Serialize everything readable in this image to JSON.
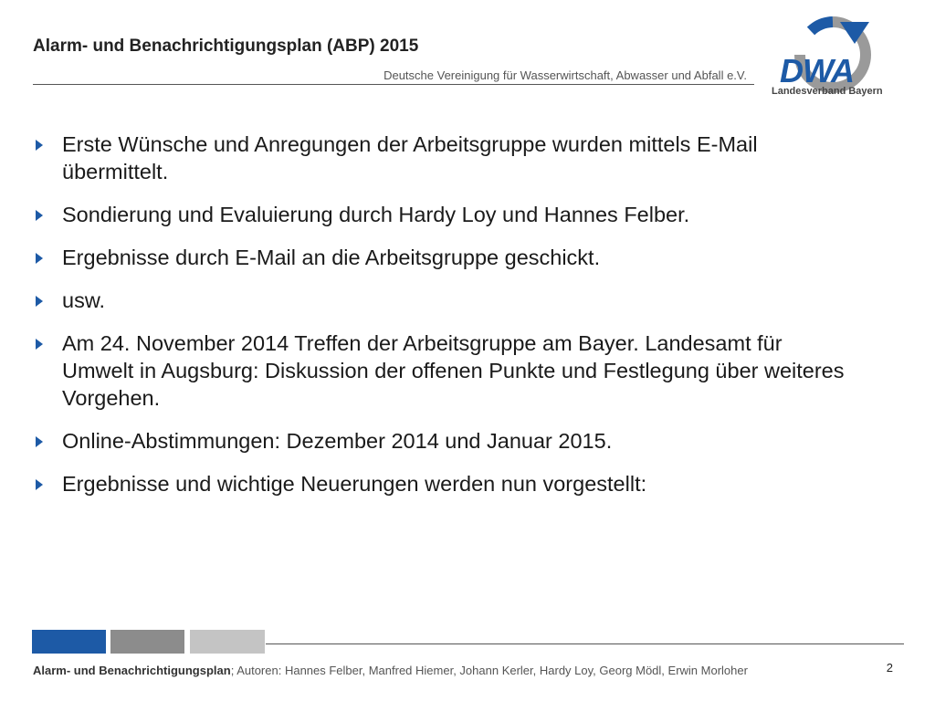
{
  "header": {
    "title": "Alarm- und Benachrichtigungsplan (ABP) 2015",
    "organization": "Deutsche Vereinigung für Wasserwirtschaft, Abwasser und Abfall e.V."
  },
  "logo": {
    "wordmark": "DWA",
    "subtitle": "Landesverband Bayern",
    "brand_blue": "#1d5aa6",
    "ring_gray": "#9a9a9a"
  },
  "bullets": [
    "Erste Wünsche und Anregungen der Arbeitsgruppe wurden mittels E-Mail übermittelt.",
    "Sondierung und Evaluierung durch Hardy Loy und Hannes Felber.",
    "Ergebnisse durch E-Mail an die Arbeitsgruppe geschickt.",
    "usw.",
    "Am 24. November 2014 Treffen der Arbeitsgruppe am Bayer. Landesamt für Umwelt in Augsburg: Diskussion der offenen Punkte und Festlegung über weiteres Vorgehen.",
    "Online-Abstimmungen: Dezember 2014 und Januar 2015.",
    "Ergebnisse und wichtige Neuerungen werden nun vorgestellt:"
  ],
  "bullet_icon": "arrow-right-icon",
  "footer": {
    "title": "Alarm- und Benachrichtigungsplan",
    "authors": "; Autoren: Hannes Felber, Manfred Hiemer, Johann Kerler, Hardy Loy, Georg Mödl, Erwin Morloher",
    "page_number": "2",
    "bar_colors": [
      "#1d5aa6",
      "#8c8c8c",
      "#c4c4c4"
    ]
  }
}
